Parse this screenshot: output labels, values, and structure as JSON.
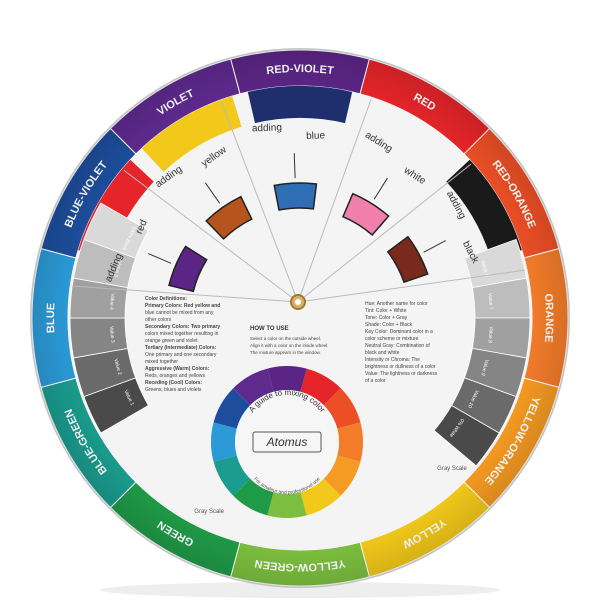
{
  "outer_ring": [
    {
      "label": "RED-VIOLET",
      "color": "#5b2585"
    },
    {
      "label": "RED",
      "color": "#e5252a"
    },
    {
      "label": "RED-ORANGE",
      "color": "#ec4f26"
    },
    {
      "label": "ORANGE",
      "color": "#f37c2a"
    },
    {
      "label": "YELLOW-ORANGE",
      "color": "#f59a22"
    },
    {
      "label": "YELLOW",
      "color": "#f2c81a"
    },
    {
      "label": "YELLOW-GREEN",
      "color": "#7cbf3f"
    },
    {
      "label": "GREEN",
      "color": "#1f9a47"
    },
    {
      "label": "BLUE-GREEN",
      "color": "#1a9c8e"
    },
    {
      "label": "BLUE",
      "color": "#2b9ad6"
    },
    {
      "label": "BLUE-VIOLET",
      "color": "#1d4d9c"
    },
    {
      "label": "VIOLET",
      "color": "#5e2a8e"
    }
  ],
  "windows": [
    {
      "word": "adding",
      "color_name": "red",
      "swatch": "#5b2585"
    },
    {
      "word": "adding",
      "color_name": "yellow",
      "swatch": "#b5541d"
    },
    {
      "word": "adding",
      "color_name": "blue",
      "swatch": "#2f6db5"
    },
    {
      "word": "adding",
      "color_name": "white",
      "swatch": "#f07fae"
    },
    {
      "word": "adding",
      "color_name": "black",
      "swatch": "#7a2a1c"
    }
  ],
  "how_to_use": {
    "title": "HOW TO USE",
    "lines": [
      "Select a color on the outside wheel.",
      "Align it with a color on the inside wheel.",
      "The mixture appears in the window."
    ]
  },
  "definitions": [
    "Color Definitions:",
    "Primary Colors: Red yellow and",
    "blue cannot be mixed from any",
    "other colors",
    "Secondary Colors: Two primary",
    "colors mixed together resulting in",
    "orange green and violet",
    "Tertiary (Intermediate) Colors:",
    "One primary and one secondary",
    "mixed together",
    "Aggressive (Warm) Colors:",
    "Reds, oranges and yellows",
    "Receding (Cool) Colors:",
    "Greens, blues and violets"
  ],
  "notes": [
    "Hue: Another name for color",
    "Tint: Color + White",
    "Tone: Color + Gray",
    "Shade: Color + Black",
    "Key Color: Dominant color in a",
    "color scheme or mixture",
    "Neutral Gray: Combination of",
    "black and white",
    "Intensity or Chroma: The",
    "brightness or dullness of a color",
    "Value: The lightness or darkness",
    "of a color"
  ],
  "gray_left": {
    "label": "Gray Scale",
    "values": [
      "Value 1",
      "Value 2",
      "Value 3",
      "Value 4",
      "Value 5",
      "100% Black"
    ]
  },
  "gray_right": {
    "label": "Gray Scale",
    "values": [
      "Value 6",
      "Value 7",
      "Value 8",
      "Value 9",
      "Value 10",
      "0% White"
    ]
  },
  "center": {
    "title": "A guide to mixing color",
    "brand": "Atomus",
    "subtitle": "For amateur and professional use"
  }
}
